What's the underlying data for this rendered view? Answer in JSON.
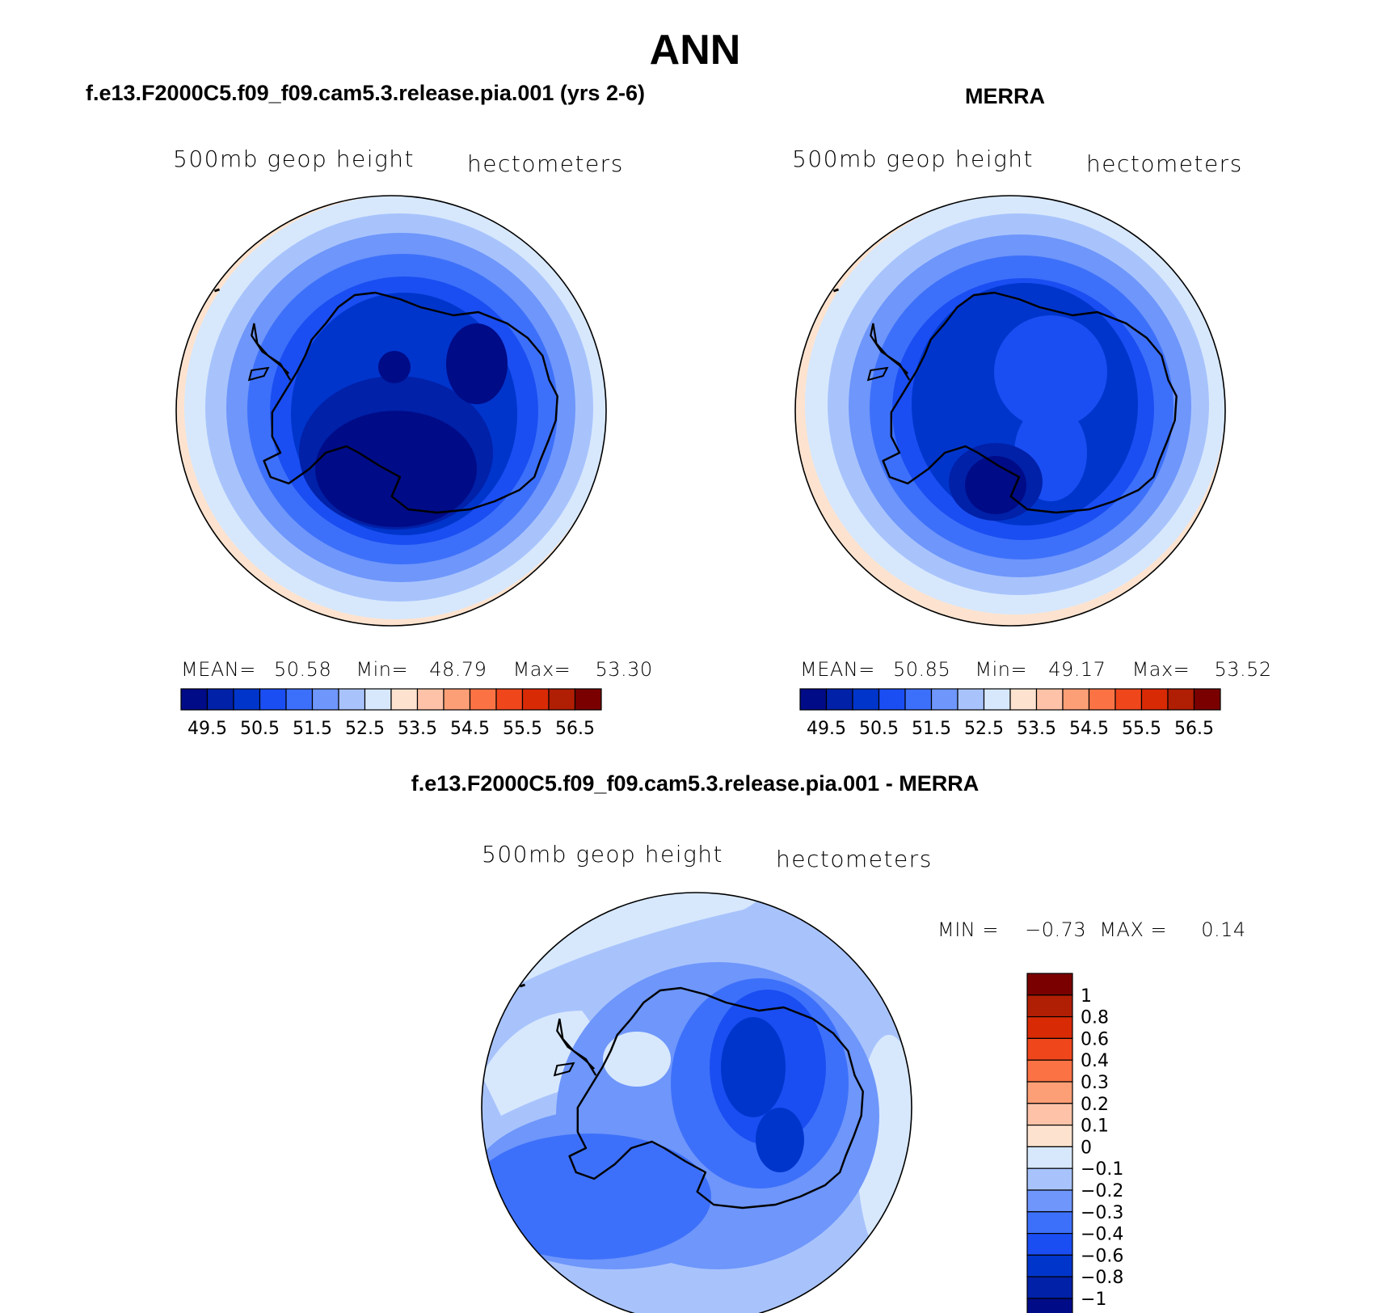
{
  "title": "ANN",
  "panels": [
    {
      "title": "f.e13.F2000C5.f09_f09.cam5.3.release.pia.001 (yrs 2-6)",
      "variable": "500mb geop height",
      "units": "hectometers",
      "mean_label": "MEAN=",
      "mean": "50.58",
      "min_label": "Min=",
      "min": "48.79",
      "max_label": "Max=",
      "max": "53.30"
    },
    {
      "title": "MERRA",
      "variable": "500mb geop height",
      "units": "hectometers",
      "mean_label": "MEAN=",
      "mean": "50.85",
      "min_label": "Min=",
      "min": "49.17",
      "max_label": "Max=",
      "max": "53.52"
    }
  ],
  "colorbar_horizontal": {
    "labels": [
      "49.5",
      "50.5",
      "51.5",
      "52.5",
      "53.5",
      "54.5",
      "55.5",
      "56.5"
    ],
    "colors": [
      "#000b87",
      "#0021a8",
      "#0035cc",
      "#1a4ef2",
      "#3d70fa",
      "#6e96fb",
      "#a8c3fc",
      "#d7e8fd",
      "#fde3cf",
      "#fdc2a7",
      "#fd9f76",
      "#fb7345",
      "#f0461c",
      "#d92a06",
      "#b01e04",
      "#7a0000"
    ]
  },
  "difference": {
    "title": "f.e13.F2000C5.f09_f09.cam5.3.release.pia.001 - MERRA",
    "variable": "500mb geop height",
    "units": "hectometers",
    "min_label": "MIN =",
    "min": "−0.73",
    "max_label": "MAX =",
    "max": "0.14",
    "colorbar": {
      "labels": [
        "1",
        "0.8",
        "0.6",
        "0.4",
        "0.3",
        "0.2",
        "0.1",
        "0",
        "−0.1",
        "−0.2",
        "−0.3",
        "−0.4",
        "−0.6",
        "−0.8",
        "−1"
      ],
      "colors": [
        "#7a0000",
        "#b01e04",
        "#d92a06",
        "#f0461c",
        "#fb7345",
        "#fd9f76",
        "#fdc2a7",
        "#fde3cf",
        "#d7e8fd",
        "#a8c3fc",
        "#6e96fb",
        "#3d70fa",
        "#1a4ef2",
        "#0035cc",
        "#0021a8",
        "#000b87"
      ]
    }
  }
}
